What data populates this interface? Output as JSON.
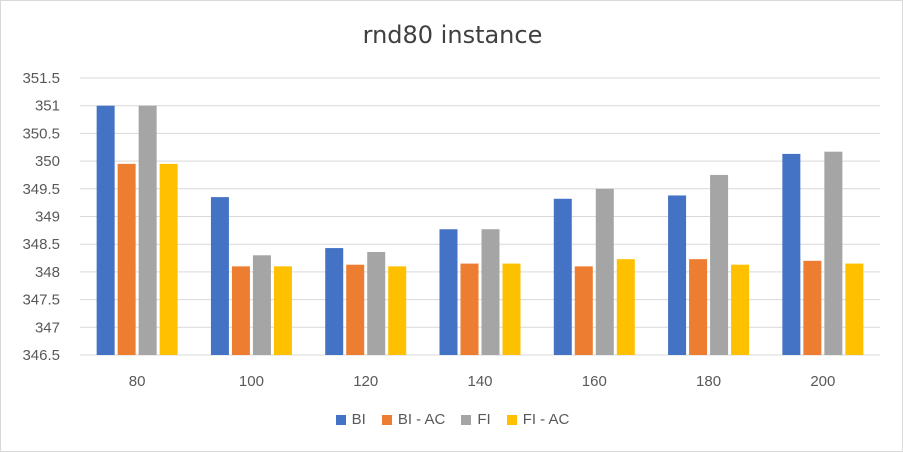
{
  "chart_data": {
    "type": "bar",
    "title": "rnd80 instance",
    "xlabel": "",
    "ylabel": "",
    "categories": [
      "80",
      "100",
      "120",
      "140",
      "160",
      "180",
      "200"
    ],
    "ylim": [
      346.5,
      351.5
    ],
    "yticks": [
      "346.5",
      "347",
      "347.5",
      "348",
      "348.5",
      "349",
      "349.5",
      "350",
      "350.5",
      "351",
      "351.5"
    ],
    "grid": true,
    "legend_position": "bottom",
    "series": [
      {
        "name": "BI",
        "color": "#4472c4",
        "values": [
          351.0,
          349.35,
          348.43,
          348.77,
          349.32,
          349.38,
          350.13
        ]
      },
      {
        "name": "BI - AC",
        "color": "#ed7d31",
        "values": [
          349.95,
          348.1,
          348.13,
          348.15,
          348.1,
          348.23,
          348.2
        ]
      },
      {
        "name": "FI",
        "color": "#a5a5a5",
        "values": [
          351.0,
          348.3,
          348.36,
          348.77,
          349.5,
          349.75,
          350.17
        ]
      },
      {
        "name": "FI - AC",
        "color": "#ffc000",
        "values": [
          349.95,
          348.1,
          348.1,
          348.15,
          348.23,
          348.13,
          348.15
        ]
      }
    ]
  }
}
